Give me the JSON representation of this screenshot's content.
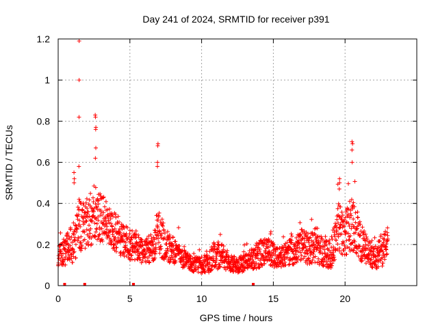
{
  "chart_data": {
    "type": "scatter",
    "title": "Day 241 of 2024, SRMTID for receiver p391",
    "xlabel": "GPS time / hours",
    "ylabel": "SRMTID / TECUs",
    "xlim": [
      0,
      25
    ],
    "ylim": [
      0,
      1.2
    ],
    "x_ticks": [
      0,
      5,
      10,
      15,
      20
    ],
    "x_tick_labels": [
      "0",
      "5",
      "10",
      "15",
      "20"
    ],
    "y_ticks": [
      0,
      0.2,
      0.4,
      0.6,
      0.8,
      1.0,
      1.2
    ],
    "y_tick_labels": [
      "0",
      "0.2",
      "0.4",
      "0.6",
      "0.8",
      "1",
      "1.2"
    ],
    "grid": true,
    "marker": "plus",
    "color": "#ff0000",
    "series": [
      {
        "name": "SRMTID",
        "envelope_x": [
          0,
          0.5,
          1.0,
          1.5,
          2.0,
          2.5,
          3.0,
          3.5,
          4.0,
          4.5,
          5.0,
          5.5,
          6.0,
          6.5,
          7.0,
          7.5,
          8.0,
          8.5,
          9.0,
          9.5,
          10.0,
          10.5,
          11.0,
          11.5,
          12.0,
          12.5,
          13.0,
          13.5,
          14.0,
          14.5,
          15.0,
          15.5,
          16.0,
          16.5,
          17.0,
          17.5,
          18.0,
          18.5,
          19.0,
          19.5,
          20.0,
          20.5,
          21.0,
          21.5,
          22.0,
          22.5,
          23.0
        ],
        "envelope_mean": [
          0.13,
          0.17,
          0.2,
          0.3,
          0.28,
          0.36,
          0.33,
          0.3,
          0.26,
          0.22,
          0.2,
          0.18,
          0.17,
          0.18,
          0.26,
          0.2,
          0.17,
          0.15,
          0.12,
          0.1,
          0.1,
          0.12,
          0.15,
          0.14,
          0.11,
          0.1,
          0.11,
          0.13,
          0.15,
          0.17,
          0.15,
          0.14,
          0.16,
          0.17,
          0.2,
          0.18,
          0.2,
          0.16,
          0.15,
          0.28,
          0.26,
          0.3,
          0.22,
          0.17,
          0.13,
          0.16,
          0.22
        ],
        "envelope_spread": [
          0.06,
          0.07,
          0.1,
          0.13,
          0.12,
          0.14,
          0.12,
          0.1,
          0.1,
          0.08,
          0.08,
          0.07,
          0.06,
          0.07,
          0.12,
          0.08,
          0.07,
          0.06,
          0.04,
          0.04,
          0.04,
          0.06,
          0.07,
          0.06,
          0.04,
          0.04,
          0.04,
          0.05,
          0.07,
          0.07,
          0.06,
          0.05,
          0.06,
          0.07,
          0.08,
          0.08,
          0.09,
          0.07,
          0.07,
          0.12,
          0.12,
          0.13,
          0.1,
          0.07,
          0.05,
          0.08,
          0.07
        ],
        "peaks": [
          {
            "x": 1.45,
            "values": [
              1.19,
              1.0,
              0.82,
              0.58,
              0.42
            ]
          },
          {
            "x": 2.6,
            "values": [
              0.83,
              0.82,
              0.77,
              0.76,
              0.67,
              0.62
            ]
          },
          {
            "x": 6.95,
            "values": [
              0.69,
              0.68,
              0.6,
              0.58
            ]
          },
          {
            "x": 20.5,
            "values": [
              0.7,
              0.69,
              0.66,
              0.6
            ]
          },
          {
            "x": 19.6,
            "values": [
              0.52,
              0.5,
              0.47
            ]
          },
          {
            "x": 1.1,
            "values": [
              0.55,
              0.52,
              0.5
            ]
          }
        ]
      }
    ],
    "gap_markers_x": [
      0.45,
      1.85,
      5.25,
      13.6
    ]
  }
}
